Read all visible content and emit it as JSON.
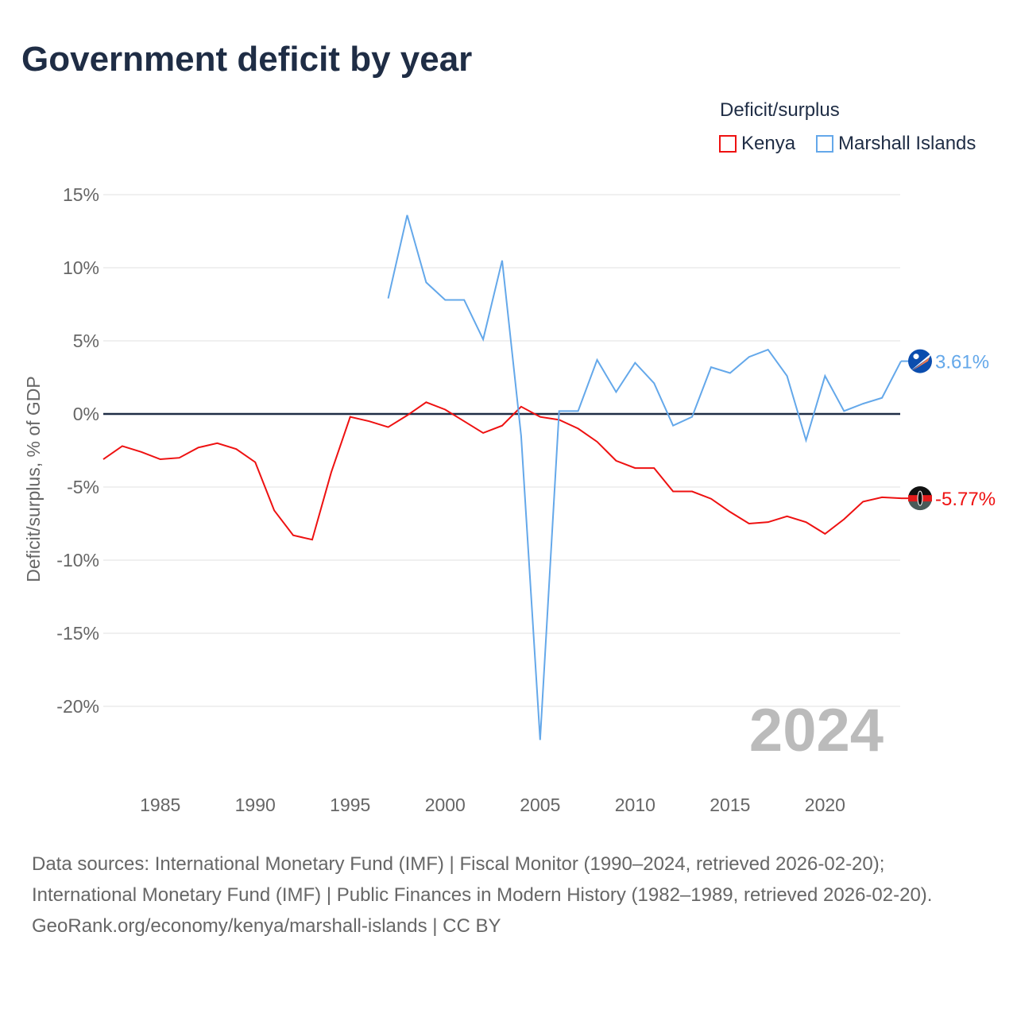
{
  "chart_data": {
    "type": "line",
    "title": "Government deficit by year",
    "ylabel": "Deficit/surplus, % of GDP",
    "xlabel": "",
    "xlim": [
      1982,
      2024
    ],
    "ylim": [
      -25,
      15
    ],
    "yticks": [
      15,
      10,
      5,
      0,
      -5,
      -10,
      -15,
      -20
    ],
    "ytick_labels": [
      "15%",
      "10%",
      "5%",
      "0%",
      "-5%",
      "-10%",
      "-15%",
      "-20%"
    ],
    "xticks": [
      1985,
      1990,
      1995,
      2000,
      2005,
      2010,
      2015,
      2020
    ],
    "xtick_labels": [
      "1985",
      "1990",
      "1995",
      "2000",
      "2005",
      "2010",
      "2015",
      "2020"
    ],
    "legend_title": "Deficit/surplus",
    "legend_position": "top-right",
    "year_watermark": "2024",
    "series": [
      {
        "name": "Kenya",
        "color": "#ee1111",
        "end_label": "-5.77%",
        "x": [
          1982,
          1983,
          1984,
          1985,
          1986,
          1987,
          1988,
          1989,
          1990,
          1991,
          1992,
          1993,
          1994,
          1995,
          1996,
          1997,
          1998,
          1999,
          2000,
          2001,
          2002,
          2003,
          2004,
          2005,
          2006,
          2007,
          2008,
          2009,
          2010,
          2011,
          2012,
          2013,
          2014,
          2015,
          2016,
          2017,
          2018,
          2019,
          2020,
          2021,
          2022,
          2023,
          2024
        ],
        "values": [
          -3.1,
          -2.2,
          -2.6,
          -3.1,
          -3.0,
          -2.3,
          -2.0,
          -2.4,
          -3.3,
          -6.6,
          -8.3,
          -8.6,
          -4.0,
          -0.2,
          -0.5,
          -0.9,
          -0.1,
          0.8,
          0.3,
          -0.5,
          -1.3,
          -0.8,
          0.5,
          -0.2,
          -0.4,
          -1.0,
          -1.9,
          -3.2,
          -3.7,
          -3.7,
          -5.3,
          -5.3,
          -5.8,
          -6.7,
          -7.5,
          -7.4,
          -7.0,
          -7.4,
          -8.2,
          -7.2,
          -6.0,
          -5.7,
          -5.77
        ]
      },
      {
        "name": "Marshall Islands",
        "color": "#64a8ea",
        "end_label": "3.61%",
        "x": [
          1997,
          1998,
          1999,
          2000,
          2001,
          2002,
          2003,
          2004,
          2005,
          2006,
          2007,
          2008,
          2009,
          2010,
          2011,
          2012,
          2013,
          2014,
          2015,
          2016,
          2017,
          2018,
          2019,
          2020,
          2021,
          2022,
          2023,
          2024
        ],
        "values": [
          7.9,
          13.6,
          9.0,
          7.8,
          7.8,
          5.1,
          10.5,
          -1.5,
          -22.3,
          0.2,
          0.2,
          3.7,
          1.5,
          3.5,
          2.1,
          -0.8,
          -0.2,
          3.2,
          2.8,
          3.9,
          4.4,
          2.6,
          -1.8,
          2.6,
          0.2,
          0.7,
          1.1,
          3.61
        ]
      }
    ]
  },
  "footer": {
    "line1": "Data sources: International Monetary Fund (IMF) | Fiscal Monitor (1990–2024, retrieved 2026-02-20); International Monetary Fund (IMF) | Public Finances in Modern History (1982–1989, retrieved 2026-02-20).",
    "line2": "GeoRank.org/economy/kenya/marshall-islands | CC BY"
  }
}
